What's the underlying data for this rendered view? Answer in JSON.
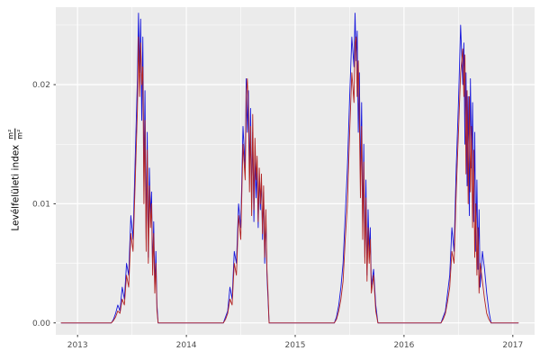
{
  "figure": {
    "background": "#FFFFFF",
    "panel_background": "#EBEBEB",
    "grid_color": "#FFFFFF",
    "tick_color": "#333333",
    "tick_label_color": "#4D4D4D",
    "axis_title_color": "#000000"
  },
  "chart_data": {
    "type": "line",
    "title": "",
    "xlabel": "",
    "ylabel_text": "Levélfelületi index",
    "ylabel_fraction": {
      "numerator": "m²",
      "denominator": "m²"
    },
    "legend": "none",
    "grid": "on",
    "xlim": [
      2012.8,
      2017.2
    ],
    "ylim": [
      -0.001,
      0.0265
    ],
    "x_ticks": [
      2013,
      2014,
      2015,
      2016,
      2017
    ],
    "x_tick_labels": [
      "2013",
      "2014",
      "2015",
      "2016",
      "2017"
    ],
    "x_minor_ticks": [
      2013.5,
      2014.5,
      2015.5,
      2016.5
    ],
    "y_ticks": [
      0,
      0.01,
      0.02
    ],
    "y_tick_labels": [
      "0.00",
      "0.01",
      "0.02"
    ],
    "y_minor_ticks": [
      0.005,
      0.015,
      0.025
    ],
    "x": [
      2012.85,
      2013.1,
      2013.25,
      2013.31,
      2013.33,
      2013.35,
      2013.37,
      2013.39,
      2013.41,
      2013.43,
      2013.45,
      2013.47,
      2013.49,
      2013.51,
      2013.53,
      2013.55,
      2013.56,
      2013.57,
      2013.58,
      2013.59,
      2013.6,
      2013.61,
      2013.62,
      2013.63,
      2013.64,
      2013.65,
      2013.66,
      2013.67,
      2013.68,
      2013.69,
      2013.7,
      2013.71,
      2013.72,
      2013.73,
      2013.74,
      2013.76,
      2013.9,
      2014.1,
      2014.3,
      2014.34,
      2014.36,
      2014.38,
      2014.4,
      2014.42,
      2014.44,
      2014.46,
      2014.48,
      2014.5,
      2014.52,
      2014.54,
      2014.55,
      2014.56,
      2014.57,
      2014.58,
      2014.59,
      2014.6,
      2014.61,
      2014.62,
      2014.63,
      2014.64,
      2014.65,
      2014.66,
      2014.67,
      2014.68,
      2014.69,
      2014.7,
      2014.71,
      2014.72,
      2014.73,
      2014.74,
      2014.75,
      2014.76,
      2014.78,
      2014.9,
      2015.1,
      2015.3,
      2015.36,
      2015.38,
      2015.4,
      2015.42,
      2015.44,
      2015.46,
      2015.48,
      2015.5,
      2015.52,
      2015.54,
      2015.55,
      2015.56,
      2015.57,
      2015.58,
      2015.59,
      2015.6,
      2015.61,
      2015.62,
      2015.63,
      2015.64,
      2015.65,
      2015.66,
      2015.67,
      2015.68,
      2015.69,
      2015.7,
      2015.72,
      2015.74,
      2015.76,
      2015.78,
      2015.9,
      2016.1,
      2016.3,
      2016.34,
      2016.36,
      2016.38,
      2016.4,
      2016.42,
      2016.44,
      2016.46,
      2016.48,
      2016.5,
      2016.52,
      2016.54,
      2016.55,
      2016.56,
      2016.57,
      2016.58,
      2016.59,
      2016.6,
      2016.61,
      2016.62,
      2016.63,
      2016.64,
      2016.65,
      2016.66,
      2016.67,
      2016.68,
      2016.69,
      2016.7,
      2016.72,
      2016.74,
      2016.76,
      2016.78,
      2016.8,
      2016.82,
      2016.95,
      2017.05
    ],
    "series": [
      {
        "name": "series-blue",
        "color": "#1414DC",
        "values": [
          0,
          0,
          0,
          0,
          0.0003,
          0.0008,
          0.0015,
          0.001,
          0.003,
          0.002,
          0.005,
          0.004,
          0.009,
          0.007,
          0.014,
          0.0205,
          0.026,
          0.021,
          0.0255,
          0.017,
          0.024,
          0.012,
          0.0195,
          0.007,
          0.016,
          0.0055,
          0.013,
          0.009,
          0.011,
          0.0045,
          0.0085,
          0.003,
          0.006,
          0.0015,
          0,
          0,
          0,
          0,
          0,
          0,
          0.0005,
          0.001,
          0.003,
          0.002,
          0.006,
          0.005,
          0.01,
          0.008,
          0.0165,
          0.013,
          0.0205,
          0.016,
          0.0195,
          0.0125,
          0.018,
          0.01,
          0.016,
          0.0085,
          0.014,
          0.0105,
          0.013,
          0.008,
          0.0125,
          0.0095,
          0.012,
          0.007,
          0.011,
          0.005,
          0.009,
          0.004,
          0.002,
          0,
          0,
          0,
          0,
          0,
          0,
          0.0005,
          0.0015,
          0.003,
          0.005,
          0.009,
          0.013,
          0.019,
          0.024,
          0.0215,
          0.026,
          0.022,
          0.0245,
          0.016,
          0.021,
          0.012,
          0.0185,
          0.008,
          0.015,
          0.0055,
          0.012,
          0.004,
          0.0095,
          0.006,
          0.008,
          0.003,
          0.0045,
          0.0015,
          0,
          0,
          0,
          0,
          0,
          0,
          0.0005,
          0.001,
          0.0025,
          0.004,
          0.008,
          0.006,
          0.013,
          0.0185,
          0.025,
          0.02,
          0.0235,
          0.015,
          0.021,
          0.0115,
          0.019,
          0.009,
          0.0205,
          0.013,
          0.0185,
          0.0085,
          0.016,
          0.006,
          0.012,
          0.0045,
          0.0095,
          0.003,
          0.006,
          0.0045,
          0.0025,
          0.001,
          0,
          0,
          0,
          0
        ]
      },
      {
        "name": "series-red",
        "color": "#B22222",
        "values": [
          0,
          0,
          0,
          0,
          0.0002,
          0.0005,
          0.001,
          0.0008,
          0.002,
          0.0015,
          0.004,
          0.003,
          0.0075,
          0.006,
          0.012,
          0.018,
          0.024,
          0.019,
          0.0235,
          0.02,
          0.0215,
          0.01,
          0.017,
          0.006,
          0.0145,
          0.005,
          0.0115,
          0.008,
          0.01,
          0.004,
          0.0075,
          0.0025,
          0.005,
          0.001,
          0,
          0,
          0,
          0,
          0,
          0,
          0.0003,
          0.0008,
          0.002,
          0.0015,
          0.005,
          0.004,
          0.009,
          0.007,
          0.015,
          0.012,
          0.019,
          0.0205,
          0.018,
          0.011,
          0.0165,
          0.009,
          0.0175,
          0.0095,
          0.0155,
          0.012,
          0.014,
          0.0085,
          0.013,
          0.01,
          0.0125,
          0.0075,
          0.0115,
          0.0055,
          0.0095,
          0.0045,
          0.0025,
          0,
          0,
          0,
          0,
          0,
          0,
          0.0003,
          0.001,
          0.002,
          0.0035,
          0.007,
          0.01,
          0.016,
          0.021,
          0.0185,
          0.0235,
          0.024,
          0.019,
          0.022,
          0.017,
          0.0105,
          0.0165,
          0.007,
          0.0135,
          0.005,
          0.0105,
          0.0035,
          0.008,
          0.005,
          0.007,
          0.0025,
          0.004,
          0.001,
          0,
          0,
          0,
          0,
          0,
          0,
          0.0003,
          0.0008,
          0.0018,
          0.003,
          0.006,
          0.005,
          0.011,
          0.016,
          0.021,
          0.023,
          0.019,
          0.0225,
          0.0125,
          0.0195,
          0.01,
          0.019,
          0.011,
          0.0165,
          0.008,
          0.0145,
          0.0055,
          0.01,
          0.004,
          0.008,
          0.0025,
          0.005,
          0.0035,
          0.002,
          0.0008,
          0.0003,
          0,
          0,
          0,
          0
        ]
      }
    ]
  }
}
